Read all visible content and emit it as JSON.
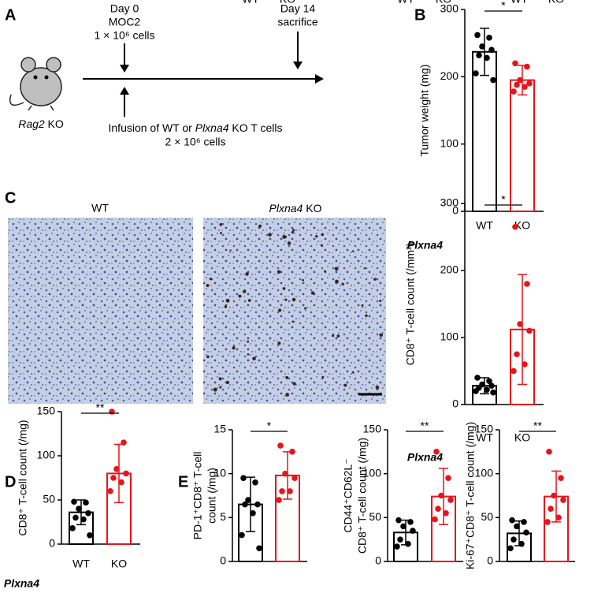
{
  "panel_labels": [
    "A",
    "B",
    "C",
    "D",
    "E"
  ],
  "diagram": {
    "day0": [
      "Day 0",
      "MOC2",
      "1 × 10⁶ cells"
    ],
    "day14": [
      "Day 14",
      "sacrifice"
    ],
    "mouse": [
      "Rag2",
      " KO"
    ],
    "infusion": [
      "Infusion of WT or ",
      "Plxna4",
      " KO T cells"
    ],
    "infusion_cells": "2 × 10⁶ cells"
  },
  "images": {
    "labels": [
      [
        "WT"
      ],
      [
        "Plxna4",
        " KO"
      ]
    ]
  },
  "chart_data": [
    {
      "type": "bar",
      "ylabel": [
        "Tumor weight (mg)"
      ],
      "xlabel": "Plxna4",
      "categories": [
        "WT",
        "KO"
      ],
      "colors": [
        "#000000",
        "#e8141b"
      ],
      "values": [
        237,
        195
      ],
      "errors": [
        35,
        22
      ],
      "points": [
        [
          262,
          258,
          245,
          240,
          232,
          228,
          205,
          195
        ],
        [
          220,
          215,
          195,
          190,
          188,
          185,
          178
        ]
      ],
      "significance": "*",
      "ylim": [
        0,
        300
      ],
      "yticks": [
        0,
        100,
        200,
        300
      ]
    },
    {
      "type": "bar",
      "ylabel": [
        "CD8⁺ T-cell count (/mm²)"
      ],
      "xlabel": "Plxna4",
      "categories": [
        "WT",
        "KO"
      ],
      "colors": [
        "#000000",
        "#e8141b"
      ],
      "values": [
        28,
        112
      ],
      "errors": [
        12,
        82
      ],
      "points": [
        [
          40,
          35,
          30,
          28,
          25,
          22,
          20,
          18
        ],
        [
          265,
          180,
          120,
          110,
          75,
          60,
          50
        ]
      ],
      "significance": "*",
      "ylim": [
        0,
        300
      ],
      "yticks": [
        0,
        100,
        200,
        300
      ]
    },
    {
      "type": "bar",
      "ylabel": [
        "CD8⁺ T-cell count (/mg)"
      ],
      "xlabel": "Plxna4",
      "categories": [
        "WT",
        "KO"
      ],
      "colors": [
        "#000000",
        "#e8141b"
      ],
      "values": [
        36,
        80
      ],
      "errors": [
        14,
        33
      ],
      "points": [
        [
          48,
          47,
          40,
          35,
          30,
          28,
          18,
          10
        ],
        [
          150,
          115,
          85,
          80,
          75,
          70,
          60
        ]
      ],
      "significance": "**",
      "ylim": [
        0,
        150
      ],
      "yticks": [
        0,
        50,
        100,
        150
      ]
    },
    {
      "type": "bar",
      "ylabel": [
        "PD-1⁺CD8⁺ T-cell",
        "count (/mg)"
      ],
      "categories": [
        "WT",
        "KO"
      ],
      "colors": [
        "#000000",
        "#e8141b"
      ],
      "values": [
        6.5,
        9.8
      ],
      "errors": [
        3.1,
        2.7
      ],
      "points": [
        [
          9.5,
          9.0,
          7.0,
          6.5,
          6.5,
          5.5,
          3.0,
          1.5
        ],
        [
          13.2,
          12.5,
          10.0,
          9.5,
          8.0,
          8.0,
          7.0
        ]
      ],
      "significance": "*",
      "ylim": [
        0,
        15
      ],
      "yticks": [
        0,
        5,
        10,
        15
      ]
    },
    {
      "type": "bar",
      "ylabel": [
        "CD44⁺CD62L⁻",
        "CD8⁺ T-cell count (/mg)"
      ],
      "categories": [
        "WT",
        "KO"
      ],
      "colors": [
        "#000000",
        "#e8141b"
      ],
      "values": [
        33,
        74
      ],
      "errors": [
        14,
        32
      ],
      "points": [
        [
          47,
          45,
          40,
          35,
          25,
          20,
          17
        ],
        [
          125,
          95,
          75,
          70,
          60,
          55,
          48
        ]
      ],
      "significance": "**",
      "ylim": [
        0,
        150
      ],
      "yticks": [
        0,
        50,
        100,
        150
      ]
    },
    {
      "type": "bar",
      "ylabel": [
        "Ki-67⁺CD8⁺ T-cell count (/mg)"
      ],
      "categories": [
        "WT",
        "KO"
      ],
      "colors": [
        "#000000",
        "#e8141b"
      ],
      "values": [
        32,
        74
      ],
      "errors": [
        14,
        29
      ],
      "points": [
        [
          47,
          45,
          40,
          33,
          25,
          20,
          15
        ],
        [
          125,
          95,
          75,
          70,
          60,
          50,
          45
        ]
      ],
      "significance": "**",
      "ylim": [
        0,
        150
      ],
      "yticks": [
        0,
        50,
        100,
        150
      ]
    }
  ]
}
